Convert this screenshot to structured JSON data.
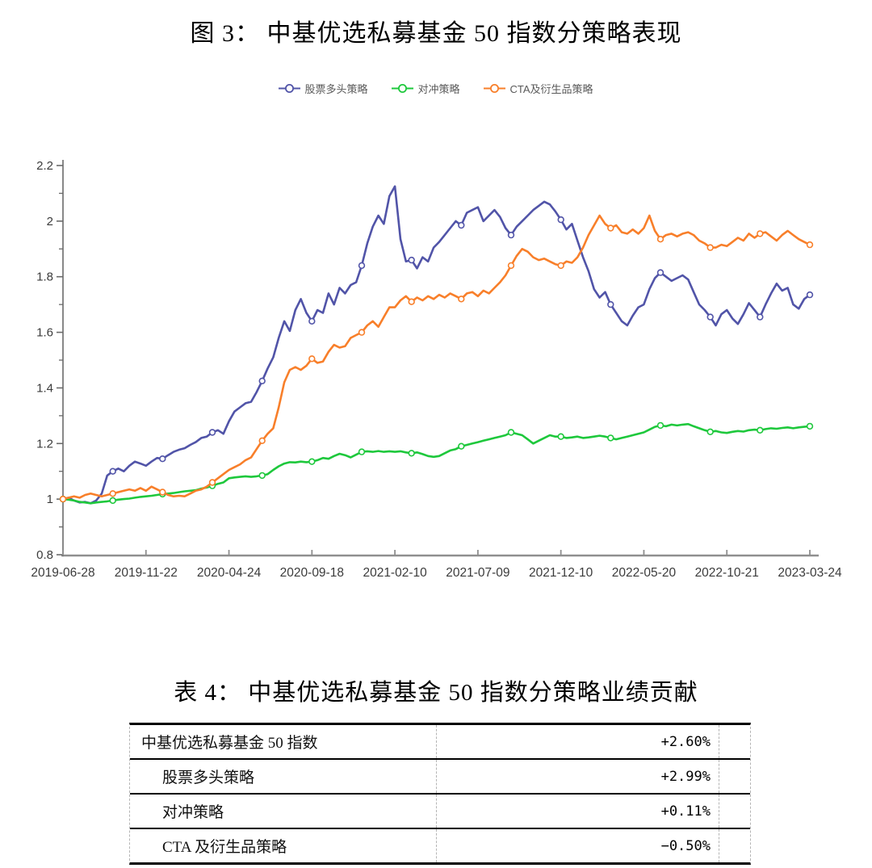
{
  "figure": {
    "title": "图 3：  中基优选私募基金 50 指数分策略表现"
  },
  "chart_data": {
    "type": "line",
    "title": "中基优选私募基金 50 指数分策略表现",
    "xlabel": "",
    "ylabel": "",
    "ylim": [
      0.8,
      2.2
    ],
    "y_ticks": [
      0.8,
      1,
      1.2,
      1.4,
      1.6,
      1.8,
      2,
      2.2
    ],
    "grid": false,
    "legend_position": "top",
    "x_tick_labels": [
      "2019-06-28",
      "2019-11-22",
      "2020-04-24",
      "2020-09-18",
      "2021-02-10",
      "2021-07-09",
      "2021-12-10",
      "2022-05-20",
      "2022-10-21",
      "2023-03-24"
    ],
    "axis_color": "#8f8f8f",
    "tick_label_color": "#3b3b3b",
    "series": [
      {
        "name": "股票多头策略",
        "key": "equity-long-strategy",
        "color": "#5154A8",
        "values": [
          1.0,
          1.005,
          0.995,
          0.988,
          0.99,
          0.985,
          0.995,
          1.02,
          1.085,
          1.1,
          1.11,
          1.1,
          1.12,
          1.135,
          1.128,
          1.12,
          1.135,
          1.148,
          1.145,
          1.158,
          1.17,
          1.178,
          1.183,
          1.195,
          1.205,
          1.22,
          1.225,
          1.24,
          1.248,
          1.235,
          1.28,
          1.315,
          1.33,
          1.345,
          1.35,
          1.385,
          1.425,
          1.47,
          1.51,
          1.58,
          1.64,
          1.605,
          1.68,
          1.72,
          1.67,
          1.64,
          1.68,
          1.67,
          1.74,
          1.7,
          1.76,
          1.74,
          1.77,
          1.78,
          1.84,
          1.92,
          1.98,
          2.02,
          1.99,
          2.09,
          2.125,
          1.935,
          1.855,
          1.86,
          1.83,
          1.87,
          1.855,
          1.905,
          1.925,
          1.95,
          1.975,
          2.0,
          1.985,
          2.03,
          2.04,
          2.05,
          2.0,
          2.02,
          2.04,
          2.015,
          1.975,
          1.95,
          1.98,
          2.0,
          2.02,
          2.04,
          2.055,
          2.07,
          2.06,
          2.035,
          2.005,
          1.97,
          1.99,
          1.93,
          1.87,
          1.82,
          1.755,
          1.725,
          1.745,
          1.7,
          1.67,
          1.64,
          1.625,
          1.66,
          1.69,
          1.7,
          1.755,
          1.795,
          1.815,
          1.8,
          1.785,
          1.795,
          1.805,
          1.79,
          1.745,
          1.7,
          1.68,
          1.655,
          1.625,
          1.665,
          1.68,
          1.65,
          1.63,
          1.665,
          1.705,
          1.68,
          1.655,
          1.7,
          1.74,
          1.775,
          1.75,
          1.76,
          1.7,
          1.685,
          1.72,
          1.735
        ]
      },
      {
        "name": "对冲策略",
        "key": "hedge-strategy",
        "color": "#1EC83C",
        "values": [
          1.0,
          0.998,
          0.995,
          0.99,
          0.988,
          0.985,
          0.988,
          0.99,
          0.992,
          0.995,
          0.998,
          1.0,
          1.002,
          1.005,
          1.008,
          1.01,
          1.012,
          1.015,
          1.018,
          1.02,
          1.022,
          1.025,
          1.028,
          1.03,
          1.032,
          1.038,
          1.042,
          1.048,
          1.055,
          1.06,
          1.075,
          1.078,
          1.08,
          1.082,
          1.08,
          1.082,
          1.085,
          1.09,
          1.105,
          1.118,
          1.128,
          1.133,
          1.132,
          1.135,
          1.133,
          1.135,
          1.14,
          1.148,
          1.145,
          1.155,
          1.163,
          1.158,
          1.15,
          1.16,
          1.17,
          1.172,
          1.17,
          1.173,
          1.17,
          1.172,
          1.17,
          1.172,
          1.168,
          1.165,
          1.168,
          1.162,
          1.155,
          1.152,
          1.155,
          1.165,
          1.175,
          1.18,
          1.19,
          1.195,
          1.2,
          1.205,
          1.21,
          1.215,
          1.22,
          1.225,
          1.23,
          1.24,
          1.235,
          1.23,
          1.215,
          1.2,
          1.21,
          1.22,
          1.23,
          1.225,
          1.225,
          1.22,
          1.222,
          1.225,
          1.22,
          1.222,
          1.225,
          1.228,
          1.225,
          1.22,
          1.215,
          1.22,
          1.225,
          1.23,
          1.235,
          1.24,
          1.25,
          1.26,
          1.265,
          1.262,
          1.268,
          1.265,
          1.268,
          1.27,
          1.262,
          1.255,
          1.248,
          1.242,
          1.245,
          1.24,
          1.238,
          1.242,
          1.245,
          1.243,
          1.248,
          1.25,
          1.248,
          1.252,
          1.255,
          1.253,
          1.256,
          1.258,
          1.255,
          1.258,
          1.26,
          1.262
        ]
      },
      {
        "name": "CTA及衍生品策略",
        "key": "cta-derivatives-strategy",
        "color": "#F87F2A",
        "values": [
          1.0,
          1.005,
          1.01,
          1.005,
          1.015,
          1.02,
          1.015,
          1.01,
          1.015,
          1.02,
          1.025,
          1.03,
          1.035,
          1.03,
          1.04,
          1.03,
          1.045,
          1.035,
          1.025,
          1.015,
          1.01,
          1.012,
          1.01,
          1.02,
          1.03,
          1.035,
          1.045,
          1.06,
          1.075,
          1.09,
          1.105,
          1.115,
          1.125,
          1.14,
          1.15,
          1.18,
          1.21,
          1.235,
          1.255,
          1.33,
          1.42,
          1.465,
          1.475,
          1.465,
          1.48,
          1.505,
          1.49,
          1.495,
          1.53,
          1.555,
          1.545,
          1.55,
          1.58,
          1.59,
          1.6,
          1.625,
          1.64,
          1.62,
          1.655,
          1.69,
          1.69,
          1.715,
          1.73,
          1.71,
          1.725,
          1.715,
          1.73,
          1.72,
          1.735,
          1.725,
          1.74,
          1.73,
          1.72,
          1.74,
          1.745,
          1.73,
          1.75,
          1.74,
          1.76,
          1.78,
          1.805,
          1.84,
          1.875,
          1.9,
          1.89,
          1.87,
          1.86,
          1.865,
          1.855,
          1.845,
          1.84,
          1.855,
          1.85,
          1.87,
          1.905,
          1.95,
          1.985,
          2.02,
          1.99,
          1.975,
          1.985,
          1.96,
          1.955,
          1.97,
          1.955,
          1.975,
          2.02,
          1.965,
          1.935,
          1.95,
          1.955,
          1.945,
          1.955,
          1.96,
          1.95,
          1.93,
          1.92,
          1.905,
          1.905,
          1.915,
          1.91,
          1.925,
          1.94,
          1.93,
          1.955,
          1.94,
          1.955,
          1.96,
          1.945,
          1.93,
          1.95,
          1.965,
          1.95,
          1.935,
          1.925,
          1.915
        ]
      }
    ]
  },
  "table": {
    "title": "表 4：  中基优选私募基金 50 指数分策略业绩贡献",
    "rows": [
      {
        "label": "中基优选私募基金 50 指数",
        "value": "+2.60%",
        "indent": false
      },
      {
        "label": "股票多头策略",
        "value": "+2.99%",
        "indent": true
      },
      {
        "label": "对冲策略",
        "value": "+0.11%",
        "indent": true
      },
      {
        "label": "CTA 及衍生品策略",
        "value": "−0.50%",
        "indent": true
      }
    ]
  }
}
